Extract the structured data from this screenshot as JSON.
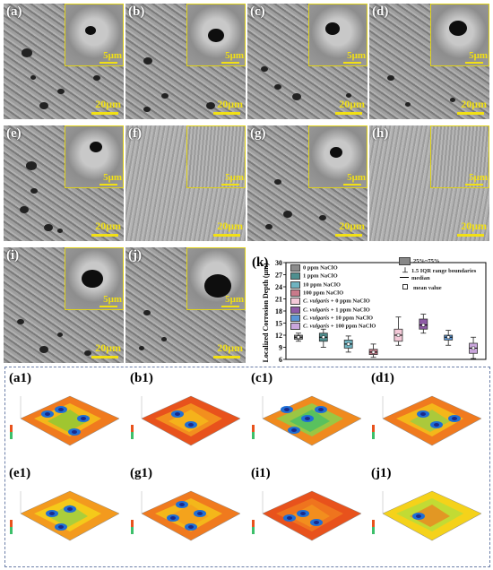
{
  "sem_panels": [
    {
      "label": "(a)",
      "scale_inset": "5μm",
      "scale_main": "20μm"
    },
    {
      "label": "(b)",
      "scale_inset": "5μm",
      "scale_main": "20μm"
    },
    {
      "label": "(c)",
      "scale_inset": "5μm",
      "scale_main": "20μm"
    },
    {
      "label": "(d)",
      "scale_inset": "5μm",
      "scale_main": "20μm"
    },
    {
      "label": "(e)",
      "scale_inset": "5μm",
      "scale_main": "20μm"
    },
    {
      "label": "(f)",
      "scale_inset": "5μm",
      "scale_main": "20μm"
    },
    {
      "label": "(g)",
      "scale_inset": "5μm",
      "scale_main": "20μm"
    },
    {
      "label": "(h)",
      "scale_inset": "5μm",
      "scale_main": "20μm"
    },
    {
      "label": "(i)",
      "scale_inset": "5μm",
      "scale_main": "20μm"
    },
    {
      "label": "(j)",
      "scale_inset": "5μm",
      "scale_main": "20μm"
    }
  ],
  "panel_k_label": "(k)",
  "chart_data": {
    "type": "box",
    "ylabel": "Localized Corrosion Depth (μm)",
    "ylim": [
      6,
      30
    ],
    "yticks": [
      6,
      9,
      12,
      15,
      18,
      21,
      24,
      27,
      30
    ],
    "legend": {
      "series": [
        {
          "name": "0 ppm NaClO",
          "color": "#8c8c8c"
        },
        {
          "name": "1 ppm NaClO",
          "color": "#4f8f8f"
        },
        {
          "name": "10 ppm NaClO",
          "color": "#6fb3c0"
        },
        {
          "name": "100 ppm NaClO",
          "color": "#c97a8a"
        },
        {
          "name": "C. vulgaris + 0 ppm NaClO",
          "color": "#f4c9d8"
        },
        {
          "name": "C. vulgaris + 1 ppm NaClO",
          "color": "#8e5aa6"
        },
        {
          "name": "C. vulgaris + 10 ppm NaClO",
          "color": "#5b95d6"
        },
        {
          "name": "C. vulgaris + 100 ppm NaClO",
          "color": "#caa6dd"
        }
      ],
      "box_key": "25%~75%",
      "whisker_key": "1.5 IQR range boundaries",
      "median_key": "median",
      "mean_key": "mean value"
    },
    "boxes": [
      {
        "q1": 11.0,
        "q3": 12.0,
        "median": 11.5,
        "min": 10.5,
        "max": 12.5
      },
      {
        "q1": 10.5,
        "q3": 12.5,
        "median": 11.5,
        "min": 9.0,
        "max": 13.5
      },
      {
        "q1": 8.8,
        "q3": 10.8,
        "median": 9.8,
        "min": 7.8,
        "max": 11.8
      },
      {
        "q1": 7.2,
        "q3": 8.5,
        "median": 7.8,
        "min": 6.5,
        "max": 9.8
      },
      {
        "q1": 10.5,
        "q3": 13.5,
        "median": 12.0,
        "min": 9.5,
        "max": 16.5
      },
      {
        "q1": 13.5,
        "q3": 16.0,
        "median": 14.5,
        "min": 12.5,
        "max": 17.2
      },
      {
        "q1": 10.8,
        "q3": 12.0,
        "median": 11.5,
        "min": 9.5,
        "max": 13.2
      },
      {
        "q1": 7.5,
        "q3": 10.0,
        "median": 8.8,
        "min": 6.2,
        "max": 11.5
      }
    ]
  },
  "surface_panels": [
    {
      "label": "(a1)"
    },
    {
      "label": "(b1)"
    },
    {
      "label": "(c1)"
    },
    {
      "label": "(d1)"
    },
    {
      "label": "(e1)"
    },
    {
      "label": "(g1)"
    },
    {
      "label": "(i1)"
    },
    {
      "label": "(j1)"
    }
  ]
}
